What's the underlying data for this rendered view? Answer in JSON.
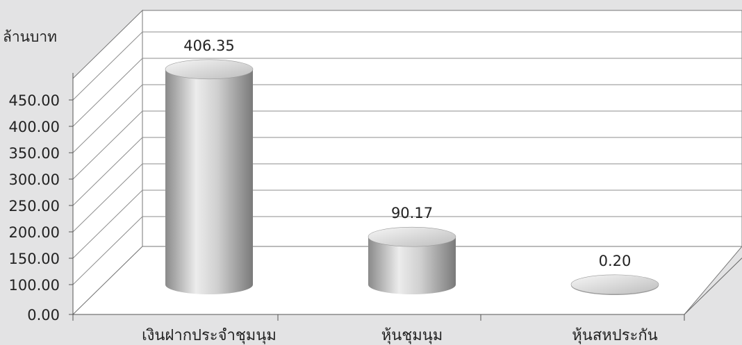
{
  "chart_data": {
    "type": "bar",
    "style": "3d-cylinder",
    "ylabel": "ล้านบาท",
    "categories": [
      "เงินฝากประจำชุมนุม",
      "หุ้นชุมนุม",
      "หุ้นสหประกัน"
    ],
    "values": [
      406.35,
      90.17,
      0.2
    ],
    "value_labels": [
      "406.35",
      "90.17",
      "0.20"
    ],
    "ylim": [
      0,
      450
    ],
    "ytick_values": [
      0,
      100,
      150,
      200,
      250,
      300,
      350,
      400,
      450
    ],
    "ytick_labels": [
      "0.00",
      "100.00",
      "150.00",
      "200.00",
      "250.00",
      "300.00",
      "350.00",
      "400.00",
      "450.00"
    ],
    "grid": true,
    "colors": {
      "background": "#e3e3e4",
      "wall": "#ffffff",
      "bar_dark": "#8e8e8e",
      "bar_light": "#ededed",
      "bar_top": "#e6e6e6"
    }
  }
}
